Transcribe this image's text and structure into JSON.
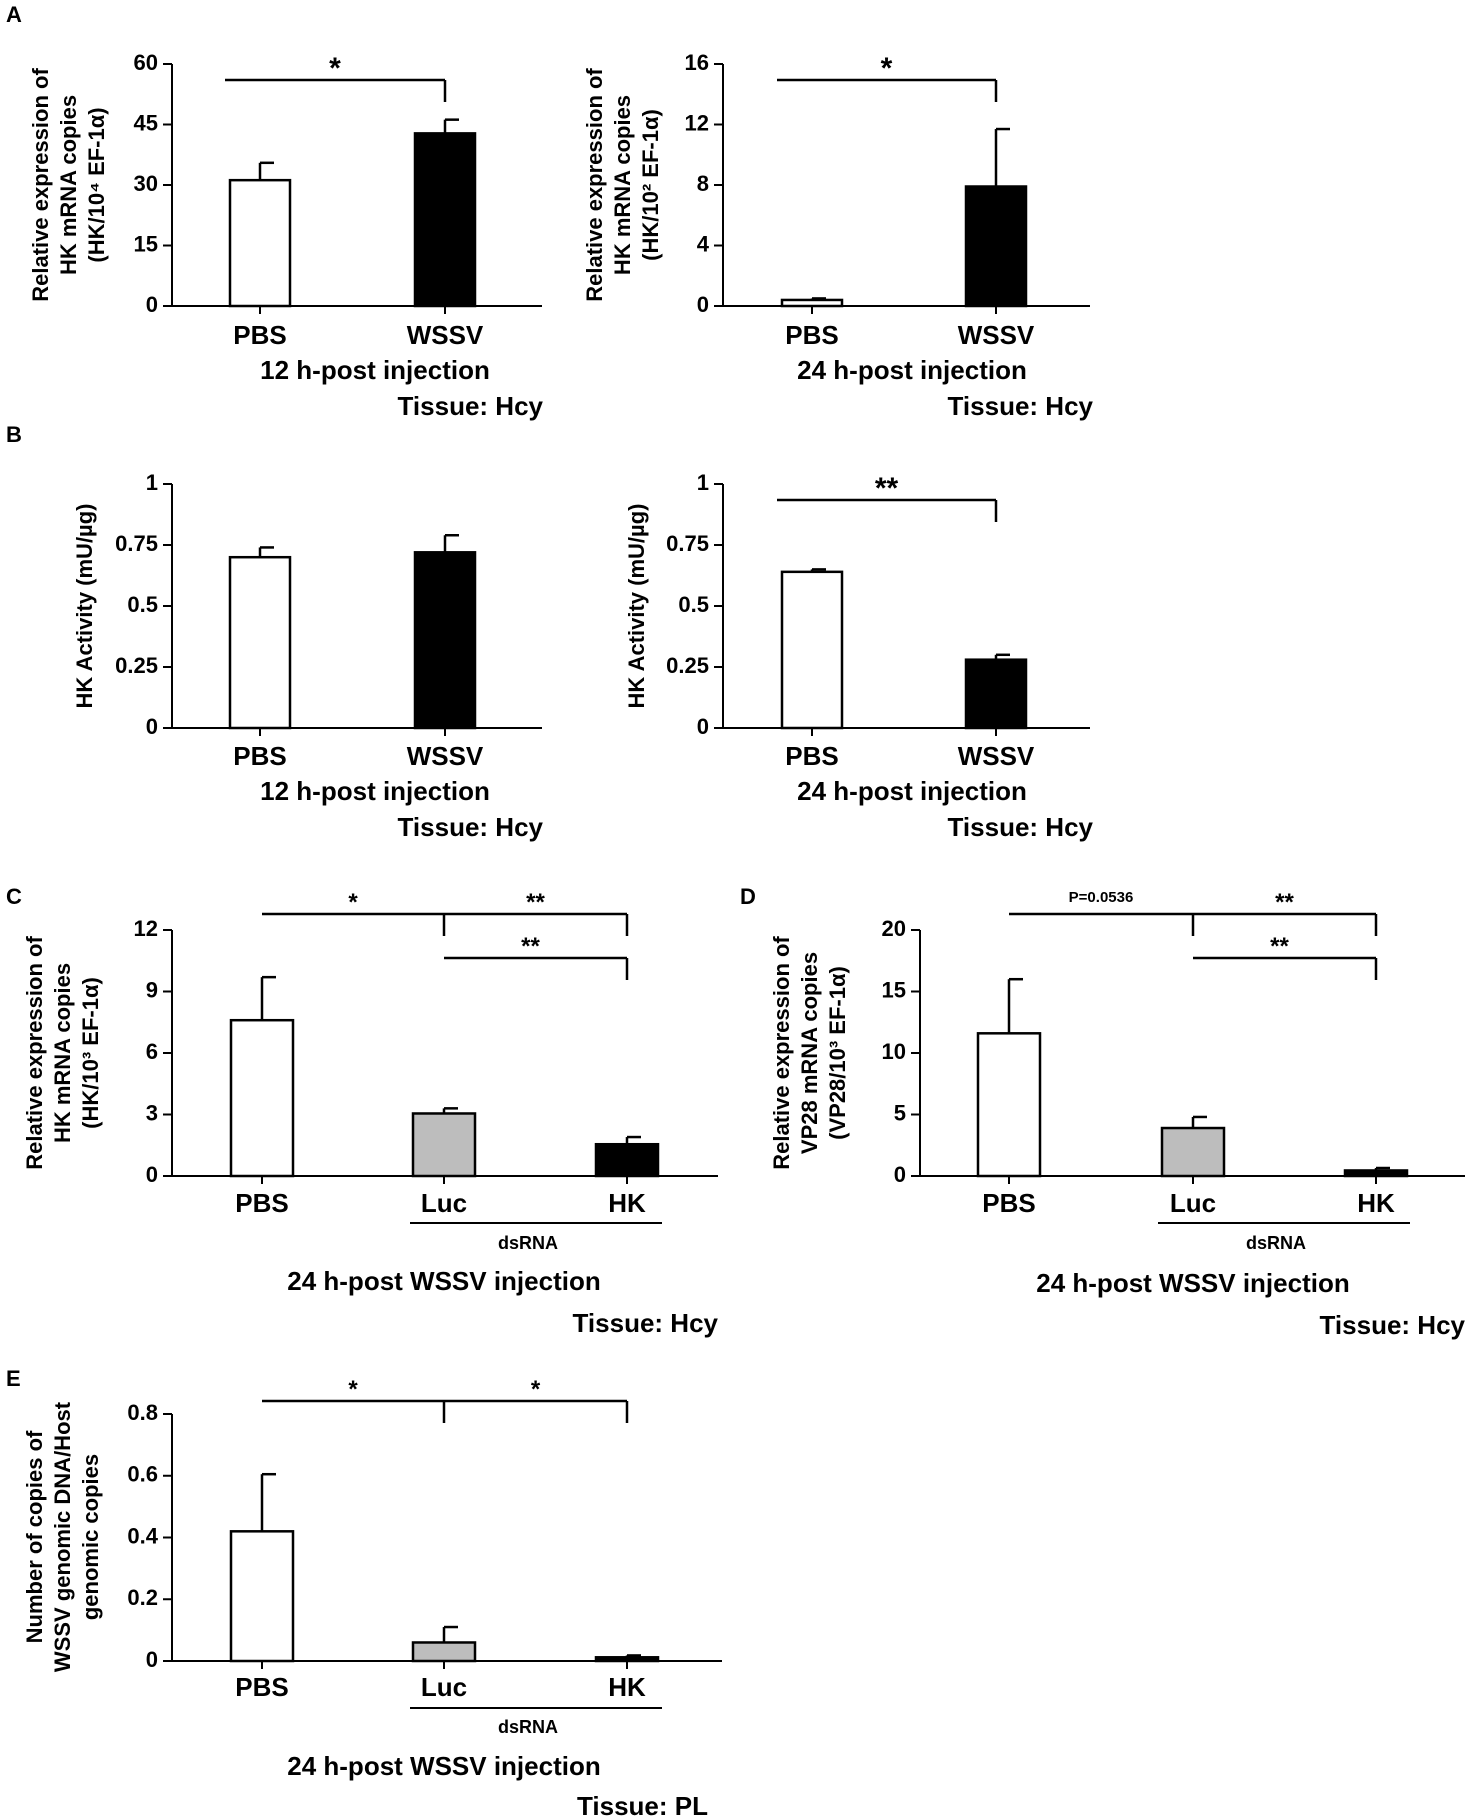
{
  "figure": {
    "panels": [
      {
        "key": "A",
        "letter": "A"
      },
      {
        "key": "B",
        "letter": "B"
      },
      {
        "key": "C",
        "letter": "C"
      },
      {
        "key": "D",
        "letter": "D"
      },
      {
        "key": "E",
        "letter": "E"
      }
    ]
  },
  "chart_data": [
    {
      "id": "A1",
      "panel": "A",
      "type": "bar",
      "ylabel_lines": [
        "Relative expression of",
        "HK mRNA copies",
        "(HK/10⁴ EF-1α)"
      ],
      "ylim": [
        0,
        60
      ],
      "ticks": [
        0,
        15,
        30,
        45,
        60
      ],
      "tick_labels": [
        "0",
        "15",
        "30",
        "45",
        "60"
      ],
      "categories": [
        "PBS",
        "WSSV"
      ],
      "values": [
        31.2,
        42.8
      ],
      "errors": [
        4.3,
        3.4
      ],
      "fills": [
        "#ffffff",
        "#000000"
      ],
      "xlabel": "12 h-post injection",
      "tissue": "Tissue: Hcy",
      "significance": [
        {
          "from": 0,
          "to": 1,
          "label": "*"
        }
      ]
    },
    {
      "id": "A2",
      "panel": "A",
      "type": "bar",
      "ylabel_lines": [
        "Relative expression of",
        "HK mRNA copies",
        "(HK/10² EF-1α)"
      ],
      "ylim": [
        0,
        16
      ],
      "ticks": [
        0,
        4,
        8,
        12,
        16
      ],
      "tick_labels": [
        "0",
        "4",
        "8",
        "12",
        "16"
      ],
      "categories": [
        "PBS",
        "WSSV"
      ],
      "values": [
        0.4,
        7.9
      ],
      "errors": [
        0.1,
        3.8
      ],
      "fills": [
        "#ffffff",
        "#000000"
      ],
      "xlabel": "24 h-post injection",
      "tissue": "Tissue: Hcy",
      "significance": [
        {
          "from": 0,
          "to": 1,
          "label": "*"
        }
      ]
    },
    {
      "id": "B1",
      "panel": "B",
      "type": "bar",
      "ylabel_lines": [
        "HK Activity (mU/µg)"
      ],
      "ylim": [
        0,
        1
      ],
      "ticks": [
        0,
        0.25,
        0.5,
        0.75,
        1
      ],
      "tick_labels": [
        "0",
        "0.25",
        "0.5",
        "0.75",
        "1"
      ],
      "categories": [
        "PBS",
        "WSSV"
      ],
      "values": [
        0.7,
        0.72
      ],
      "errors": [
        0.04,
        0.07
      ],
      "fills": [
        "#ffffff",
        "#000000"
      ],
      "xlabel": "12 h-post injection",
      "tissue": "Tissue: Hcy",
      "significance": []
    },
    {
      "id": "B2",
      "panel": "B",
      "type": "bar",
      "ylabel_lines": [
        "HK Activity (mU/µg)"
      ],
      "ylim": [
        0,
        1
      ],
      "ticks": [
        0,
        0.25,
        0.5,
        0.75,
        1
      ],
      "tick_labels": [
        "0",
        "0.25",
        "0.5",
        "0.75",
        "1"
      ],
      "categories": [
        "PBS",
        "WSSV"
      ],
      "values": [
        0.64,
        0.28
      ],
      "errors": [
        0.01,
        0.02
      ],
      "fills": [
        "#ffffff",
        "#000000"
      ],
      "xlabel": "24 h-post injection",
      "tissue": "Tissue: Hcy",
      "significance": [
        {
          "from": 0,
          "to": 1,
          "label": "**"
        }
      ]
    },
    {
      "id": "C",
      "panel": "C",
      "type": "bar",
      "ylabel_lines": [
        "Relative expression of",
        "HK mRNA copies",
        "(HK/10³ EF-1α)"
      ],
      "ylim": [
        0,
        12
      ],
      "ticks": [
        0,
        3,
        6,
        9,
        12
      ],
      "tick_labels": [
        "0",
        "3",
        "6",
        "9",
        "12"
      ],
      "categories": [
        "PBS",
        "Luc",
        "HK"
      ],
      "values": [
        7.6,
        3.05,
        1.55
      ],
      "errors": [
        2.1,
        0.25,
        0.35
      ],
      "fills": [
        "#ffffff",
        "#bdbdbd",
        "#000000"
      ],
      "dsrna": "dsRNA",
      "xlabel": "24 h-post WSSV injection",
      "tissue": "Tissue: Hcy",
      "significance": [
        {
          "from": 0,
          "to": 1,
          "label": "*",
          "level": 0
        },
        {
          "from": 1,
          "to": 2,
          "label": "**",
          "level": 0
        },
        {
          "from": 1,
          "to": 2,
          "label": "**",
          "level": 1
        }
      ]
    },
    {
      "id": "D",
      "panel": "D",
      "type": "bar",
      "ylabel_lines": [
        "Relative expression of",
        "VP28 mRNA copies",
        "(VP28/10³ EF-1α)"
      ],
      "ylim": [
        0,
        20
      ],
      "ticks": [
        0,
        5,
        10,
        15,
        20
      ],
      "tick_labels": [
        "0",
        "5",
        "10",
        "15",
        "20"
      ],
      "categories": [
        "PBS",
        "Luc",
        "HK"
      ],
      "values": [
        11.6,
        3.9,
        0.45
      ],
      "errors": [
        4.4,
        0.9,
        0.2
      ],
      "fills": [
        "#ffffff",
        "#bdbdbd",
        "#000000"
      ],
      "dsrna": "dsRNA",
      "xlabel": "24 h-post WSSV injection",
      "tissue": "Tissue: Hcy",
      "significance": [
        {
          "from": 0,
          "to": 1,
          "label": "P=0.0536",
          "level": 0
        },
        {
          "from": 1,
          "to": 2,
          "label": "**",
          "level": 0
        },
        {
          "from": 1,
          "to": 2,
          "label": "**",
          "level": 1
        }
      ]
    },
    {
      "id": "E",
      "panel": "E",
      "type": "bar",
      "ylabel_lines": [
        "Number of copies of",
        "WSSV genomic DNA/Host",
        "genomic copies"
      ],
      "ylim": [
        0,
        0.8
      ],
      "ticks": [
        0,
        0.2,
        0.4,
        0.6,
        0.8
      ],
      "tick_labels": [
        "0",
        "0.2",
        "0.4",
        "0.6",
        "0.8"
      ],
      "categories": [
        "PBS",
        "Luc",
        "HK"
      ],
      "values": [
        0.42,
        0.06,
        0.012
      ],
      "errors": [
        0.185,
        0.05,
        0.006
      ],
      "fills": [
        "#ffffff",
        "#bdbdbd",
        "#000000"
      ],
      "dsrna": "dsRNA",
      "xlabel": "24 h-post WSSV injection",
      "tissue": "Tissue: PL",
      "significance": [
        {
          "from": 0,
          "to": 1,
          "label": "*",
          "level": 0
        },
        {
          "from": 1,
          "to": 2,
          "label": "*",
          "level": 0
        }
      ]
    }
  ]
}
